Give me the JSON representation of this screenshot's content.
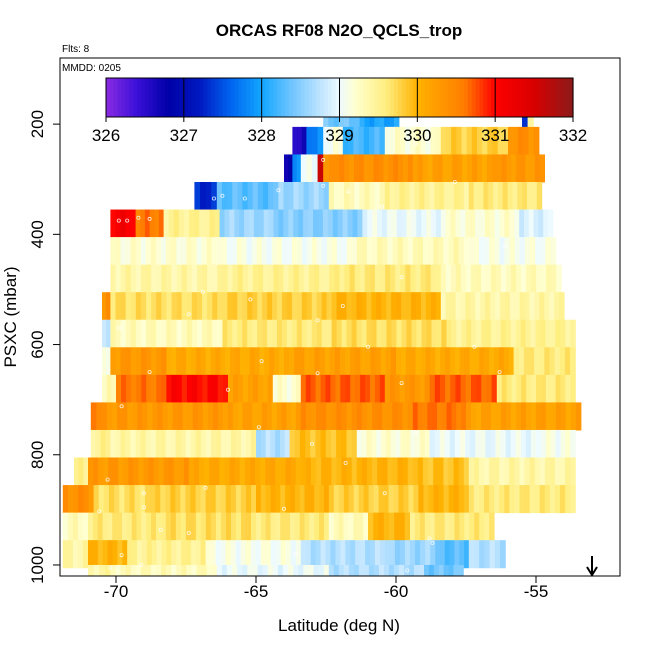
{
  "chart_data": {
    "type": "heatmap",
    "title": "ORCAS RF08 N2O_QCLS_trop",
    "note_flights": "Flts: 8",
    "note_date": "MMDD: 0205",
    "xlabel": "Latitude (deg N)",
    "ylabel": "PSXC (mbar)",
    "xlim": [
      -72,
      -52
    ],
    "ylim": [
      1020,
      80
    ],
    "x_ticks": [
      -70,
      -65,
      -60,
      -55
    ],
    "x_tick_labels": [
      "-70",
      "-65",
      "-60",
      "-55"
    ],
    "y_ticks": [
      200,
      400,
      600,
      800,
      1000
    ],
    "y_tick_labels": [
      "200",
      "400",
      "600",
      "800",
      "1000"
    ],
    "colorbar": {
      "min": 326,
      "max": 332,
      "ticks": [
        326,
        327,
        328,
        329,
        330,
        331,
        332
      ],
      "tick_labels": [
        "326",
        "327",
        "328",
        "329",
        "330",
        "331",
        "332"
      ]
    },
    "colormap": [
      {
        "v": 326.0,
        "c": "#8a2be2"
      },
      {
        "v": 326.4,
        "c": "#3a10d8"
      },
      {
        "v": 326.8,
        "c": "#0000a8"
      },
      {
        "v": 327.2,
        "c": "#0018c0"
      },
      {
        "v": 327.6,
        "c": "#0064f0"
      },
      {
        "v": 328.0,
        "c": "#12a6ff"
      },
      {
        "v": 328.4,
        "c": "#73c6ff"
      },
      {
        "v": 328.8,
        "c": "#c8e8ff"
      },
      {
        "v": 329.0,
        "c": "#eefbff"
      },
      {
        "v": 329.2,
        "c": "#ffffd0"
      },
      {
        "v": 329.6,
        "c": "#ffee80"
      },
      {
        "v": 330.0,
        "c": "#ffb200"
      },
      {
        "v": 330.6,
        "c": "#ff7e00"
      },
      {
        "v": 331.0,
        "c": "#ff0000"
      },
      {
        "v": 331.5,
        "c": "#d80000"
      },
      {
        "v": 332.0,
        "c": "#8b1a1a"
      }
    ],
    "bands": [
      {
        "p": 180,
        "segs": [
          [
            -62.6,
            -61.3,
            328.4
          ],
          [
            -61.3,
            -59.9,
            328.0
          ],
          [
            -55.5,
            -55.3,
            327.2
          ],
          [
            -55.3,
            -55.1,
            329.3
          ]
        ]
      },
      {
        "p": 230,
        "segs": [
          [
            -63.7,
            -63.2,
            326.6
          ],
          [
            -63.2,
            -62.6,
            327.8
          ],
          [
            -62.6,
            -61.9,
            329.1
          ],
          [
            -61.9,
            -60.4,
            328.2
          ],
          [
            -60.4,
            -58.4,
            329.2
          ],
          [
            -58.4,
            -56.0,
            329.8
          ],
          [
            -56.0,
            -54.9,
            330.4
          ]
        ]
      },
      {
        "p": 280,
        "segs": [
          [
            -64.0,
            -63.7,
            326.7
          ],
          [
            -63.7,
            -63.4,
            327.8
          ],
          [
            -63.4,
            -62.8,
            329.0
          ],
          [
            -62.8,
            -62.6,
            331.6
          ],
          [
            -62.6,
            -62.2,
            330.3
          ],
          [
            -62.2,
            -59.4,
            330.4
          ],
          [
            -59.4,
            -56.4,
            330.2
          ],
          [
            -56.4,
            -54.7,
            330.3
          ]
        ]
      },
      {
        "p": 330,
        "segs": [
          [
            -67.2,
            -66.4,
            327.3
          ],
          [
            -66.4,
            -64.2,
            328.3
          ],
          [
            -64.2,
            -62.4,
            328.6
          ],
          [
            -62.4,
            -60.4,
            329.3
          ],
          [
            -60.4,
            -57.4,
            329.5
          ],
          [
            -57.4,
            -54.8,
            329.6
          ]
        ]
      },
      {
        "p": 380,
        "segs": [
          [
            -70.2,
            -69.3,
            331.1
          ],
          [
            -69.3,
            -68.3,
            330.6
          ],
          [
            -68.3,
            -66.3,
            329.5
          ],
          [
            -66.3,
            -64.2,
            328.6
          ],
          [
            -64.2,
            -61.2,
            328.5
          ],
          [
            -61.2,
            -58.4,
            329.0
          ],
          [
            -58.4,
            -55.6,
            329.2
          ],
          [
            -55.6,
            -54.4,
            328.9
          ]
        ]
      },
      {
        "p": 430,
        "segs": [
          [
            -70.2,
            -66.4,
            329.2
          ],
          [
            -66.4,
            -61.4,
            329.1
          ],
          [
            -61.4,
            -57.4,
            329.3
          ],
          [
            -57.4,
            -54.3,
            329.1
          ]
        ]
      },
      {
        "p": 480,
        "segs": [
          [
            -70.2,
            -66.2,
            329.4
          ],
          [
            -66.2,
            -62.2,
            329.5
          ],
          [
            -62.2,
            -58.4,
            329.6
          ],
          [
            -58.4,
            -54.1,
            329.3
          ]
        ]
      },
      {
        "p": 530,
        "segs": [
          [
            -70.5,
            -70.2,
            330.4
          ],
          [
            -70.2,
            -66.2,
            329.7
          ],
          [
            -66.2,
            -62.3,
            329.8
          ],
          [
            -62.3,
            -58.4,
            330.0
          ],
          [
            -58.4,
            -54.0,
            329.4
          ]
        ]
      },
      {
        "p": 580,
        "segs": [
          [
            -70.5,
            -70.2,
            328.7
          ],
          [
            -70.2,
            -66.2,
            329.3
          ],
          [
            -66.2,
            -62.3,
            329.6
          ],
          [
            -62.3,
            -58.2,
            329.7
          ],
          [
            -58.2,
            -53.6,
            329.5
          ]
        ]
      },
      {
        "p": 630,
        "segs": [
          [
            -70.5,
            -70.2,
            329.2
          ],
          [
            -70.2,
            -68.2,
            330.3
          ],
          [
            -68.2,
            -64.0,
            330.1
          ],
          [
            -64.0,
            -60.0,
            330.2
          ],
          [
            -60.0,
            -55.8,
            330.1
          ],
          [
            -55.8,
            -53.6,
            329.6
          ]
        ]
      },
      {
        "p": 680,
        "segs": [
          [
            -70.5,
            -70.0,
            329.3
          ],
          [
            -70.0,
            -68.2,
            330.6
          ],
          [
            -68.2,
            -66.0,
            331.0
          ],
          [
            -66.0,
            -64.4,
            330.2
          ],
          [
            -64.4,
            -63.4,
            329.2
          ],
          [
            -63.4,
            -60.4,
            330.7
          ],
          [
            -60.4,
            -58.8,
            330.3
          ],
          [
            -58.8,
            -56.4,
            330.7
          ],
          [
            -56.4,
            -53.6,
            329.6
          ]
        ]
      },
      {
        "p": 730,
        "segs": [
          [
            -70.9,
            -70.5,
            330.5
          ],
          [
            -70.5,
            -66.0,
            330.3
          ],
          [
            -66.0,
            -63.4,
            330.2
          ],
          [
            -63.4,
            -59.4,
            330.4
          ],
          [
            -59.4,
            -57.5,
            330.6
          ],
          [
            -57.5,
            -53.4,
            330.2
          ]
        ]
      },
      {
        "p": 780,
        "segs": [
          [
            -70.9,
            -70.2,
            329.5
          ],
          [
            -70.2,
            -65.0,
            329.4
          ],
          [
            -65.0,
            -63.8,
            328.7
          ],
          [
            -63.8,
            -61.4,
            329.9
          ],
          [
            -61.4,
            -58.8,
            329.2
          ],
          [
            -58.8,
            -55.0,
            329.0
          ],
          [
            -55.0,
            -53.6,
            329.1
          ]
        ]
      },
      {
        "p": 830,
        "segs": [
          [
            -71.5,
            -71.0,
            329.5
          ],
          [
            -71.0,
            -67.4,
            330.3
          ],
          [
            -67.4,
            -63.4,
            330.1
          ],
          [
            -63.4,
            -59.4,
            330.0
          ],
          [
            -59.4,
            -57.4,
            329.9
          ],
          [
            -57.4,
            -53.6,
            329.4
          ]
        ]
      },
      {
        "p": 880,
        "segs": [
          [
            -71.9,
            -70.8,
            330.4
          ],
          [
            -70.8,
            -68.6,
            329.7
          ],
          [
            -68.6,
            -65.0,
            329.8
          ],
          [
            -65.0,
            -62.4,
            330.0
          ],
          [
            -62.4,
            -59.2,
            329.8
          ],
          [
            -59.2,
            -57.4,
            330.0
          ],
          [
            -57.4,
            -53.6,
            329.6
          ]
        ]
      },
      {
        "p": 930,
        "segs": [
          [
            -71.9,
            -71.0,
            329.3
          ],
          [
            -71.0,
            -68.4,
            329.6
          ],
          [
            -68.4,
            -65.0,
            329.7
          ],
          [
            -65.0,
            -62.4,
            329.6
          ],
          [
            -62.4,
            -61.0,
            329.3
          ],
          [
            -61.0,
            -59.5,
            330.0
          ],
          [
            -59.5,
            -56.5,
            329.6
          ]
        ]
      },
      {
        "p": 980,
        "segs": [
          [
            -71.9,
            -71.0,
            329.4
          ],
          [
            -71.0,
            -69.6,
            330.0
          ],
          [
            -69.6,
            -66.8,
            329.5
          ],
          [
            -66.8,
            -63.4,
            329.1
          ],
          [
            -63.4,
            -60.4,
            328.7
          ],
          [
            -60.4,
            -58.6,
            328.6
          ],
          [
            -58.6,
            -57.4,
            328.3
          ],
          [
            -57.4,
            -56.1,
            328.7
          ]
        ]
      },
      {
        "p": 1025,
        "segs": [
          [
            -71.0,
            -70.2,
            329.4
          ],
          [
            -70.2,
            -66.4,
            329.3
          ],
          [
            -66.4,
            -62.4,
            329.0
          ],
          [
            -62.4,
            -59.0,
            328.7
          ],
          [
            -59.0,
            -57.6,
            328.4
          ]
        ]
      }
    ],
    "band_height": 50,
    "markers": [
      [
        -69.9,
        375
      ],
      [
        -69.6,
        375
      ],
      [
        -69.2,
        370
      ],
      [
        -68.8,
        372
      ],
      [
        -66.5,
        335
      ],
      [
        -66.2,
        330
      ],
      [
        -65.4,
        335
      ],
      [
        -64.2,
        320
      ],
      [
        -61.7,
        322
      ],
      [
        -59.3,
        235
      ],
      [
        -62.6,
        265
      ],
      [
        -57.9,
        305
      ],
      [
        -62.6,
        312
      ],
      [
        -60.5,
        350
      ],
      [
        -56.1,
        422
      ],
      [
        -59.8,
        478
      ],
      [
        -61.9,
        530
      ],
      [
        -65.2,
        518
      ],
      [
        -66.9,
        504
      ],
      [
        -69.9,
        570
      ],
      [
        -67.4,
        545
      ],
      [
        -62.8,
        556
      ],
      [
        -57.2,
        604
      ],
      [
        -64.8,
        630
      ],
      [
        -61.0,
        604
      ],
      [
        -68.8,
        650
      ],
      [
        -59.8,
        670
      ],
      [
        -62.8,
        652
      ],
      [
        -66.0,
        682
      ],
      [
        -56.3,
        650
      ],
      [
        -69.8,
        712
      ],
      [
        -64.9,
        750
      ],
      [
        -63.0,
        780
      ],
      [
        -59.3,
        760
      ],
      [
        -61.8,
        815
      ],
      [
        -70.3,
        845
      ],
      [
        -69.0,
        870
      ],
      [
        -66.8,
        860
      ],
      [
        -64.0,
        898
      ],
      [
        -60.4,
        870
      ],
      [
        -70.6,
        903
      ],
      [
        -69.0,
        895
      ],
      [
        -68.4,
        936
      ],
      [
        -67.4,
        942
      ],
      [
        -69.8,
        982
      ],
      [
        -58.8,
        952
      ],
      [
        -58.7,
        960
      ],
      [
        -63.6,
        980
      ],
      [
        -70.2,
        1005
      ],
      [
        -69.1,
        1000
      ],
      [
        -59.6,
        1010
      ],
      [
        -61.5,
        1030
      ]
    ],
    "arrow_lat": -53.0
  }
}
